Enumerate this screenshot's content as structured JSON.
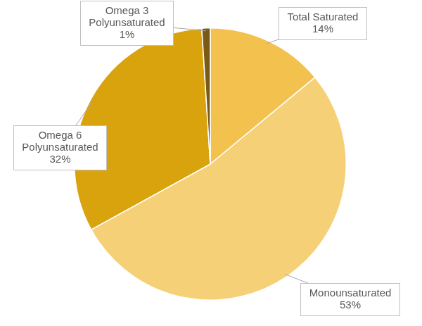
{
  "chart_data": {
    "type": "pie",
    "categories": [
      "Total Saturated",
      "Monounsaturated",
      "Omega 6 Polyunsaturated",
      "Omega 3 Polyunsaturated"
    ],
    "values": [
      14,
      53,
      32,
      1
    ],
    "value_labels": [
      "14%",
      "53%",
      "32%",
      "1%"
    ],
    "colors": [
      "#f2c14e",
      "#f6d077",
      "#d9a30e",
      "#7a5a14"
    ],
    "data_labels": true
  }
}
